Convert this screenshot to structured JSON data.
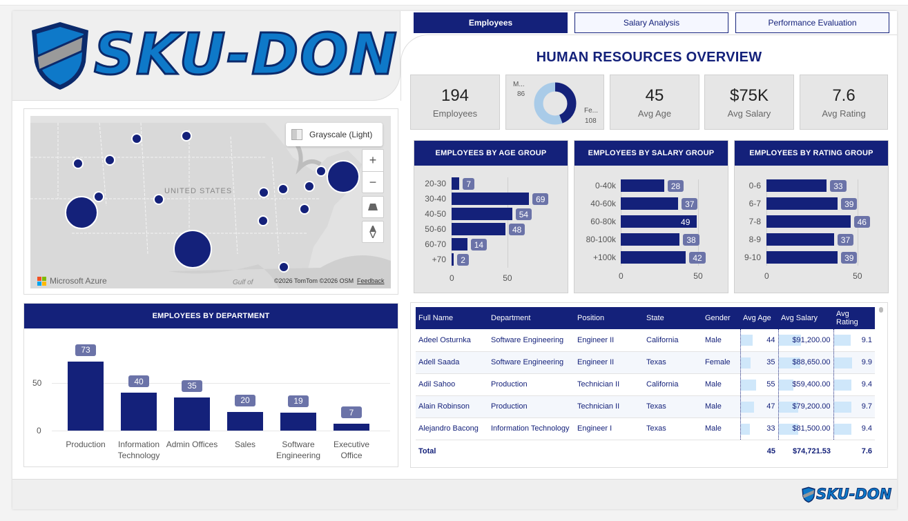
{
  "brand": {
    "name": "SKU-DON",
    "colors": {
      "navy": "#14217a",
      "blue": "#0e79c9",
      "gray": "#9a9a9a"
    }
  },
  "tabs": [
    {
      "label": "Employees",
      "active": true
    },
    {
      "label": "Salary Analysis",
      "active": false
    },
    {
      "label": "Performance Evaluation",
      "active": false
    }
  ],
  "page_title": "HUMAN RESOURCES OVERVIEW",
  "kpis": {
    "employees": {
      "value": "194",
      "label": "Employees"
    },
    "gender": {
      "male_label": "M...",
      "male_value": "86",
      "female_label": "Fe...",
      "female_value": "108"
    },
    "avg_age": {
      "value": "45",
      "label": "Avg Age"
    },
    "avg_salary": {
      "value": "$75K",
      "label": "Avg Salary"
    },
    "avg_rating": {
      "value": "7.6",
      "label": "Avg Rating"
    }
  },
  "map": {
    "style_button": "Grayscale (Light)",
    "country_label": "UNITED STATES",
    "gulf_label": "Gulf of",
    "attribution": "Microsoft Azure",
    "copyright": "©2026 TomTom ©2026 OSM",
    "feedback": "Feedback",
    "zoom_in": "+",
    "zoom_out": "−"
  },
  "chart_data": [
    {
      "id": "age",
      "type": "bar",
      "orientation": "horizontal",
      "title": "EMPLOYEES BY AGE GROUP",
      "categories": [
        "20-30",
        "30-40",
        "40-50",
        "50-60",
        "60-70",
        "+70"
      ],
      "values": [
        7,
        69,
        54,
        48,
        14,
        2
      ],
      "xticks": [
        "0",
        "50"
      ],
      "xlim": [
        0,
        80
      ]
    },
    {
      "id": "salary",
      "type": "bar",
      "orientation": "horizontal",
      "title": "EMPLOYEES BY SALARY GROUP",
      "categories": [
        "0-40k",
        "40-60k",
        "60-80k",
        "80-100k",
        "+100k"
      ],
      "values": [
        28,
        37,
        49,
        38,
        42
      ],
      "xticks": [
        "0",
        "50"
      ],
      "xlim": [
        0,
        57
      ]
    },
    {
      "id": "rating",
      "type": "bar",
      "orientation": "horizontal",
      "title": "EMPLOYEES BY RATING GROUP",
      "categories": [
        "0-6",
        "6-7",
        "7-8",
        "8-9",
        "9-10"
      ],
      "values": [
        33,
        39,
        46,
        37,
        39
      ],
      "xticks": [
        "0",
        "50"
      ],
      "xlim": [
        0,
        56
      ]
    },
    {
      "id": "department",
      "type": "bar",
      "orientation": "vertical",
      "title": "EMPLOYEES BY DEPARTMENT",
      "categories": [
        "Production",
        "Information Technology",
        "Admin Offices",
        "Sales",
        "Software Engineering",
        "Executive Office"
      ],
      "values": [
        73,
        40,
        35,
        20,
        19,
        7
      ],
      "yticks": [
        "0",
        "50"
      ],
      "ylim": [
        0,
        80
      ]
    }
  ],
  "table": {
    "columns": [
      "Full Name",
      "Department",
      "Position",
      "State",
      "Gender",
      "Avg Age",
      "Avg Salary",
      "Avg Rating"
    ],
    "rows": [
      {
        "name": "Adeel Osturnka",
        "dept": "Software Engineering",
        "pos": "Engineer II",
        "state": "California",
        "gender": "Male",
        "age": "44",
        "salary": "$91,200.00",
        "rating": "9.1",
        "age_n": 44,
        "salary_n": 91200,
        "rating_n": 9.1
      },
      {
        "name": "Adell Saada",
        "dept": "Software Engineering",
        "pos": "Engineer II",
        "state": "Texas",
        "gender": "Female",
        "age": "35",
        "salary": "$88,650.00",
        "rating": "9.9",
        "age_n": 35,
        "salary_n": 88650,
        "rating_n": 9.9
      },
      {
        "name": "Adil Sahoo",
        "dept": "Production",
        "pos": "Technician II",
        "state": "California",
        "gender": "Male",
        "age": "55",
        "salary": "$59,400.00",
        "rating": "9.4",
        "age_n": 55,
        "salary_n": 59400,
        "rating_n": 9.4
      },
      {
        "name": "Alain Robinson",
        "dept": "Production",
        "pos": "Technician II",
        "state": "Texas",
        "gender": "Male",
        "age": "47",
        "salary": "$79,200.00",
        "rating": "9.7",
        "age_n": 47,
        "salary_n": 79200,
        "rating_n": 9.7
      },
      {
        "name": "Alejandro Bacong",
        "dept": "Information Technology",
        "pos": "Engineer I",
        "state": "Texas",
        "gender": "Male",
        "age": "33",
        "salary": "$81,500.00",
        "rating": "9.4",
        "age_n": 33,
        "salary_n": 81500,
        "rating_n": 9.4
      }
    ],
    "total": {
      "label": "Total",
      "age": "45",
      "salary": "$74,721.53",
      "rating": "7.6"
    }
  }
}
